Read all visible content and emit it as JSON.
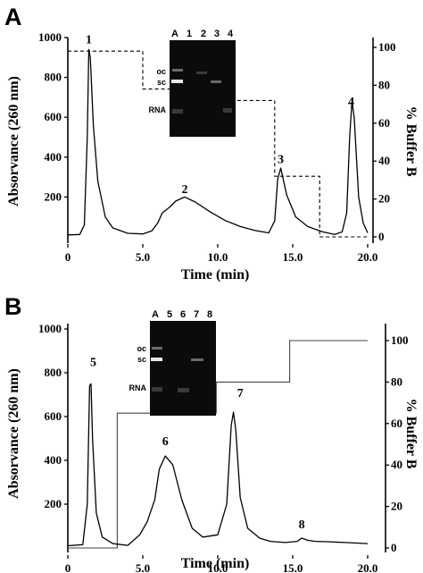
{
  "panels": [
    {
      "letter": "A",
      "left_axis_title": "Absorvance (260 nm)",
      "right_axis_title": "% Buffer B",
      "x_axis_title": "Time (min)",
      "gel": {
        "lane_labels": [
          "A",
          "1",
          "2",
          "3",
          "4"
        ],
        "band_labels": [
          "oc",
          "sc",
          "RNA"
        ]
      }
    },
    {
      "letter": "B",
      "left_axis_title": "Absorvance (260 nm)",
      "right_axis_title": "% Buffer B",
      "x_axis_title": "Time (min)",
      "gel": {
        "lane_labels": [
          "A",
          "5",
          "6",
          "7",
          "8"
        ],
        "band_labels": [
          "oc",
          "sc",
          "RNA"
        ]
      }
    }
  ],
  "chart_data": [
    {
      "type": "line",
      "xlabel": "Time (min)",
      "ylabel": "Absorvance (260 nm)",
      "y2label": "% Buffer B",
      "xlim": [
        0,
        20
      ],
      "ylim": [
        0,
        1000
      ],
      "y2lim": [
        0,
        100
      ],
      "x_ticks": [
        "0",
        "5.0",
        "10.0",
        "15.0",
        "20.0"
      ],
      "y_ticks": [
        "200",
        "400",
        "600",
        "800",
        "1000"
      ],
      "y2_ticks": [
        "0",
        "20",
        "40",
        "60",
        "80",
        "100"
      ],
      "peak_labels": [
        {
          "text": "1",
          "x": 1.4,
          "y": 970
        },
        {
          "text": "2",
          "x": 7.8,
          "y": 220
        },
        {
          "text": "3",
          "x": 14.2,
          "y": 370
        },
        {
          "text": "4",
          "x": 18.9,
          "y": 660
        }
      ],
      "series": [
        {
          "role": "absorbance",
          "x": [
            0,
            0.8,
            1.1,
            1.3,
            1.4,
            1.5,
            1.7,
            2.0,
            2.5,
            3.0,
            4.0,
            5.0,
            5.6,
            6.0,
            6.3,
            6.8,
            7.2,
            7.8,
            8.5,
            9.5,
            10.5,
            11.5,
            12.5,
            13.4,
            13.8,
            14.0,
            14.2,
            14.6,
            15.2,
            16.0,
            17.0,
            17.8,
            18.3,
            18.6,
            18.8,
            18.95,
            19.1,
            19.4,
            19.7,
            20.0
          ],
          "y": [
            10,
            12,
            60,
            500,
            940,
            900,
            560,
            280,
            100,
            45,
            18,
            15,
            30,
            70,
            120,
            150,
            180,
            200,
            175,
            125,
            82,
            52,
            32,
            20,
            80,
            290,
            345,
            210,
            100,
            52,
            25,
            12,
            25,
            120,
            500,
            680,
            600,
            200,
            70,
            20
          ]
        },
        {
          "role": "buffer_b",
          "axis": "right",
          "x": [
            0,
            5.0,
            5.0,
            8.5,
            8.5,
            11.5,
            11.5,
            13.8,
            13.8,
            16.8,
            16.8,
            20.0
          ],
          "y": [
            98,
            98,
            78,
            78,
            72,
            72,
            72,
            72,
            32,
            32,
            0,
            0
          ]
        }
      ]
    },
    {
      "type": "line",
      "xlabel": "Time (min)",
      "ylabel": "Absorvance (260 nm)",
      "y2label": "% Buffer B",
      "xlim": [
        0,
        20
      ],
      "ylim": [
        0,
        1000
      ],
      "y2lim": [
        0,
        100
      ],
      "x_ticks": [
        "0",
        "5.0",
        "10.0",
        "15.0",
        "20.0"
      ],
      "y_ticks": [
        "200",
        "400",
        "600",
        "800",
        "1000"
      ],
      "y2_ticks": [
        "0",
        "20",
        "40",
        "60",
        "80",
        "100"
      ],
      "peak_labels": [
        {
          "text": "5",
          "x": 1.7,
          "y": 830
        },
        {
          "text": "6",
          "x": 6.5,
          "y": 470
        },
        {
          "text": "7",
          "x": 11.5,
          "y": 690
        },
        {
          "text": "8",
          "x": 15.6,
          "y": 90
        }
      ],
      "series": [
        {
          "role": "absorbance",
          "x": [
            0,
            1.0,
            1.3,
            1.45,
            1.55,
            1.65,
            1.9,
            2.3,
            3.0,
            4.0,
            4.8,
            5.3,
            5.8,
            6.1,
            6.5,
            7.0,
            7.6,
            8.3,
            9.0,
            10.0,
            10.6,
            10.9,
            11.05,
            11.2,
            11.5,
            12.0,
            12.8,
            13.5,
            14.5,
            15.3,
            15.6,
            16.0,
            16.5,
            17.5,
            18.5,
            20.0
          ],
          "y": [
            10,
            15,
            200,
            740,
            750,
            500,
            160,
            50,
            20,
            12,
            60,
            120,
            220,
            360,
            420,
            380,
            220,
            90,
            50,
            60,
            200,
            560,
            620,
            540,
            230,
            90,
            45,
            30,
            25,
            30,
            45,
            35,
            30,
            28,
            25,
            20
          ]
        },
        {
          "role": "buffer_b",
          "axis": "right",
          "x": [
            0,
            3.3,
            3.3,
            9.9,
            9.9,
            14.8,
            14.8,
            20.0
          ],
          "y": [
            0,
            0,
            65,
            65,
            80,
            80,
            100,
            100
          ]
        }
      ]
    }
  ]
}
